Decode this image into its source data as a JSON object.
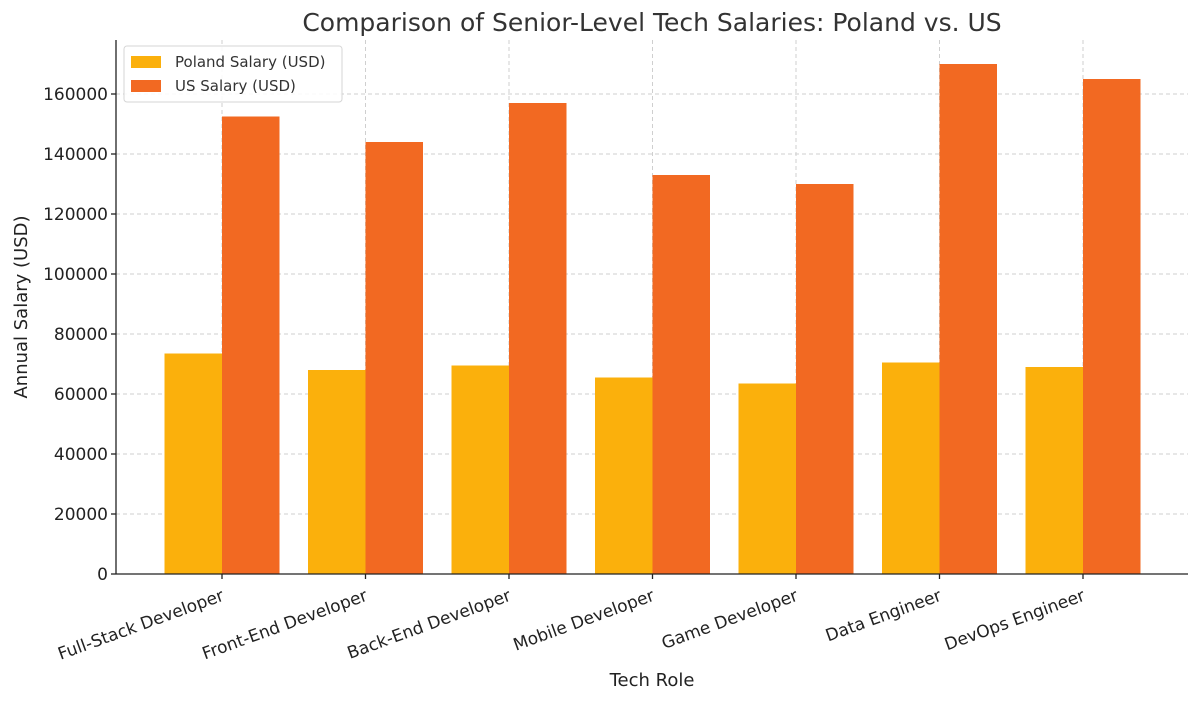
{
  "chart_data": {
    "type": "bar",
    "title": "Comparison of Senior-Level Tech Salaries: Poland vs. US",
    "xlabel": "Tech Role",
    "ylabel": "Annual Salary (USD)",
    "categories": [
      "Full-Stack Developer",
      "Front-End Developer",
      "Back-End Developer",
      "Mobile Developer",
      "Game Developer",
      "Data Engineer",
      "DevOps Engineer"
    ],
    "series": [
      {
        "name": "Poland Salary (USD)",
        "color": "#fbb00c",
        "values": [
          73500,
          68000,
          69500,
          65500,
          63500,
          70500,
          69000
        ]
      },
      {
        "name": "US Salary (USD)",
        "color": "#f26922",
        "values": [
          152500,
          144000,
          157000,
          133000,
          130000,
          170000,
          165000
        ]
      }
    ],
    "ylim": [
      0,
      178000
    ],
    "yticks": [
      0,
      20000,
      40000,
      60000,
      80000,
      100000,
      120000,
      140000,
      160000
    ],
    "grid": true,
    "legend_position": "top-left"
  }
}
